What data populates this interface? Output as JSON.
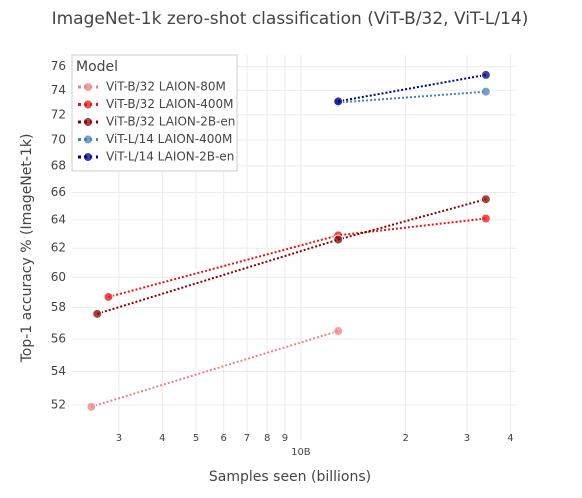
{
  "chart_data": {
    "type": "line",
    "title": "ImageNet-1k zero-shot classification (ViT-B/32, ViT-L/14)",
    "x_label": "Samples seen (billions)",
    "y_label": "Top-1 accuracy % (ImageNet-1k)",
    "legend_title": "Model",
    "legend_position": "top-left",
    "x_log": true,
    "y_log": true,
    "grid": true,
    "xlim": [
      2.2,
      41.5
    ],
    "ylim": [
      50,
      77
    ],
    "xticks": [
      3,
      4,
      5,
      6,
      7,
      8,
      9,
      {
        "value": 10,
        "label": "10B"
      },
      {
        "value": 20,
        "label": "2"
      },
      {
        "value": 30,
        "label": "3"
      },
      {
        "value": 40,
        "label": "4"
      }
    ],
    "yticks": [
      52,
      54,
      56,
      58,
      60,
      62,
      64,
      66,
      68,
      70,
      72,
      74,
      76
    ],
    "series": [
      {
        "name": "ViT-B/32 LAION-80M",
        "color": "#f08080",
        "x": [
          2.5,
          12.8
        ],
        "values": [
          51.9,
          56.5
        ]
      },
      {
        "name": "ViT-B/32 LAION-400M",
        "color": "#ee1111",
        "x": [
          2.8,
          12.8,
          34
        ],
        "values": [
          58.7,
          62.9,
          64.1
        ]
      },
      {
        "name": "ViT-B/32 LAION-2B-en",
        "color": "#8b0000",
        "x": [
          2.6,
          12.8,
          34
        ],
        "values": [
          57.6,
          62.6,
          65.5
        ]
      },
      {
        "name": "ViT-L/14 LAION-400M",
        "color": "#4682b4",
        "x": [
          12.8,
          34
        ],
        "values": [
          73.0,
          73.9
        ]
      },
      {
        "name": "ViT-L/14 LAION-2B-en",
        "color": "#00008b",
        "x": [
          12.8,
          34
        ],
        "values": [
          73.1,
          75.3
        ]
      }
    ]
  }
}
